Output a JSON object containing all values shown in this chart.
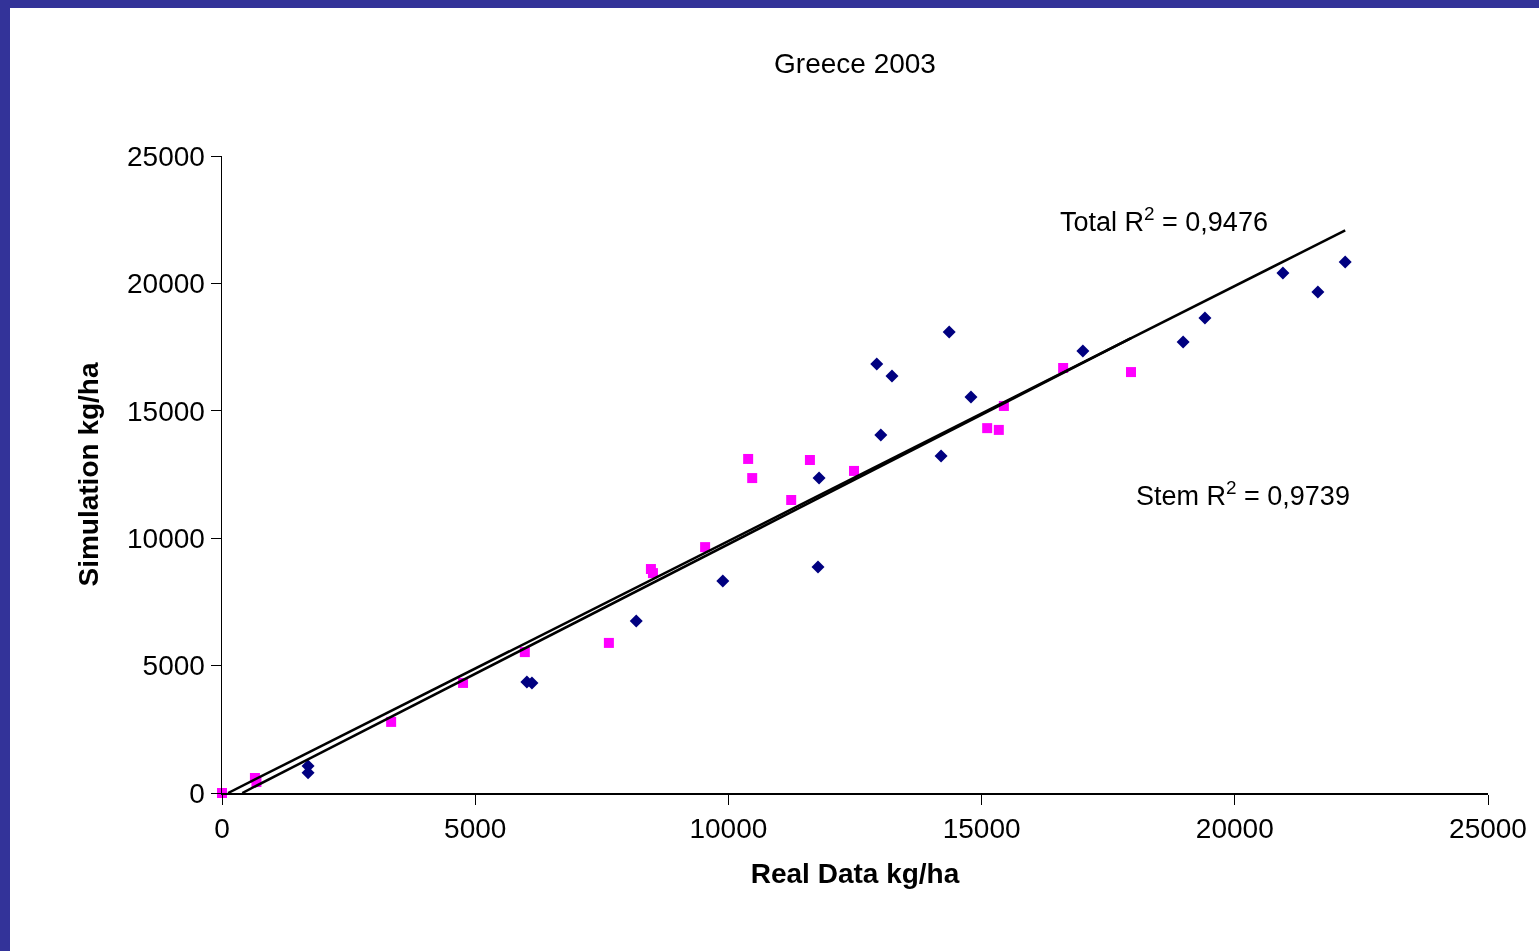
{
  "chart_data": {
    "type": "scatter",
    "title": "Greece 2003",
    "xlabel": "Real Data kg/ha",
    "ylabel": "Simulation kg/ha",
    "xlim": [
      0,
      25000
    ],
    "ylim": [
      0,
      25000
    ],
    "xticks": [
      0,
      5000,
      10000,
      15000,
      20000,
      25000
    ],
    "yticks": [
      0,
      5000,
      10000,
      15000,
      20000,
      25000
    ],
    "grid": false,
    "annotations": [
      "Total R$^{2}$ = 0,9476",
      "Stem R$^{2}$ = 0,9739"
    ],
    "series": [
      {
        "color": "#000080",
        "marker": "diamond",
        "x": [
          1700,
          1700,
          6020,
          6120,
          8180,
          9890,
          11770,
          11790,
          12930,
          13010,
          13230,
          14200,
          14360,
          14790,
          17000,
          18980,
          19410,
          20950,
          21640,
          22180
        ],
        "values": [
          1060,
          790,
          4360,
          4320,
          6750,
          8320,
          8870,
          12360,
          16840,
          14050,
          16370,
          13230,
          18090,
          15540,
          17350,
          17700,
          18640,
          20410,
          19660,
          20840
        ]
      },
      {
        "color": "#ff00ff",
        "marker": "square",
        "x": [
          0,
          650,
          680,
          3340,
          4760,
          5980,
          7640,
          8470,
          8510,
          9540,
          10390,
          10470,
          11240,
          11610,
          12480,
          15110,
          15340,
          15440,
          16610,
          17950
        ],
        "values": [
          0,
          590,
          430,
          2790,
          4320,
          5530,
          5890,
          8790,
          8630,
          9650,
          13110,
          12360,
          11500,
          13070,
          12640,
          14320,
          14250,
          15190,
          16680,
          16520
        ]
      },
      {
        "type": "line",
        "color": "#000000",
        "marker": "none",
        "x": [
          120,
          22180
        ],
        "values": [
          0,
          22080
        ]
      },
      {
        "type": "line",
        "color": "#000000",
        "marker": "none",
        "x": [
          400,
          17950
        ],
        "values": [
          0,
          17850
        ]
      }
    ]
  }
}
